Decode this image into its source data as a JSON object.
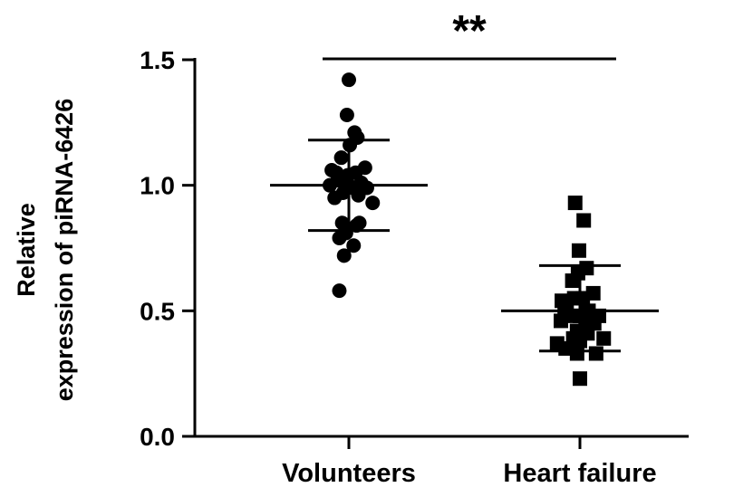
{
  "chart_data": {
    "type": "scatter",
    "ylabel_lines": [
      "Relative",
      "expression of piRNA-6426"
    ],
    "ylim": [
      0.0,
      1.5
    ],
    "yticks": [
      "0.0",
      "0.5",
      "1.0",
      "1.5"
    ],
    "significance": "**",
    "groups": [
      {
        "label": "Volunteers",
        "marker": "circle",
        "mean": 1.0,
        "sd_upper": 1.18,
        "sd_lower": 0.82,
        "points": [
          [
            0,
            1.42
          ],
          [
            -0.02,
            1.28
          ],
          [
            0.06,
            1.21
          ],
          [
            0.09,
            1.19
          ],
          [
            0.01,
            1.16
          ],
          [
            -0.08,
            1.11
          ],
          [
            -0.18,
            1.06
          ],
          [
            -0.13,
            1.05
          ],
          [
            -0.01,
            1.04
          ],
          [
            0.07,
            1.05
          ],
          [
            0.17,
            1.07
          ],
          [
            -0.2,
            1.0
          ],
          [
            -0.12,
            1.02
          ],
          [
            0.0,
            1.0
          ],
          [
            0.13,
            1.01
          ],
          [
            -0.06,
            0.97
          ],
          [
            0.04,
            0.99
          ],
          [
            0.19,
            0.99
          ],
          [
            -0.15,
            0.95
          ],
          [
            0.1,
            0.96
          ],
          [
            0.25,
            0.93
          ],
          [
            -0.07,
            0.85
          ],
          [
            0.08,
            0.84
          ],
          [
            -0.03,
            0.81
          ],
          [
            -0.1,
            0.79
          ],
          [
            0.05,
            0.76
          ],
          [
            -0.05,
            0.72
          ],
          [
            0.11,
            0.85
          ],
          [
            -0.1,
            0.58
          ]
        ]
      },
      {
        "label": "Heart failure",
        "marker": "square",
        "mean": 0.5,
        "sd_upper": 0.68,
        "sd_lower": 0.34,
        "points": [
          [
            -0.05,
            0.93
          ],
          [
            0.04,
            0.86
          ],
          [
            -0.01,
            0.74
          ],
          [
            0.07,
            0.67
          ],
          [
            -0.02,
            0.65
          ],
          [
            -0.08,
            0.62
          ],
          [
            0.14,
            0.57
          ],
          [
            -0.06,
            0.55
          ],
          [
            0.03,
            0.55
          ],
          [
            -0.14,
            0.53
          ],
          [
            -0.19,
            0.54
          ],
          [
            -0.16,
            0.49
          ],
          [
            -0.09,
            0.48
          ],
          [
            0.0,
            0.48
          ],
          [
            0.09,
            0.5
          ],
          [
            0.2,
            0.48
          ],
          [
            -0.2,
            0.46
          ],
          [
            0.06,
            0.44
          ],
          [
            -0.03,
            0.42
          ],
          [
            0.15,
            0.45
          ],
          [
            -0.07,
            0.39
          ],
          [
            0.0,
            0.38
          ],
          [
            0.08,
            0.41
          ],
          [
            0.25,
            0.39
          ],
          [
            -0.24,
            0.37
          ],
          [
            -0.15,
            0.35
          ],
          [
            -0.03,
            0.33
          ],
          [
            0.17,
            0.33
          ],
          [
            0.0,
            0.23
          ]
        ]
      }
    ]
  }
}
